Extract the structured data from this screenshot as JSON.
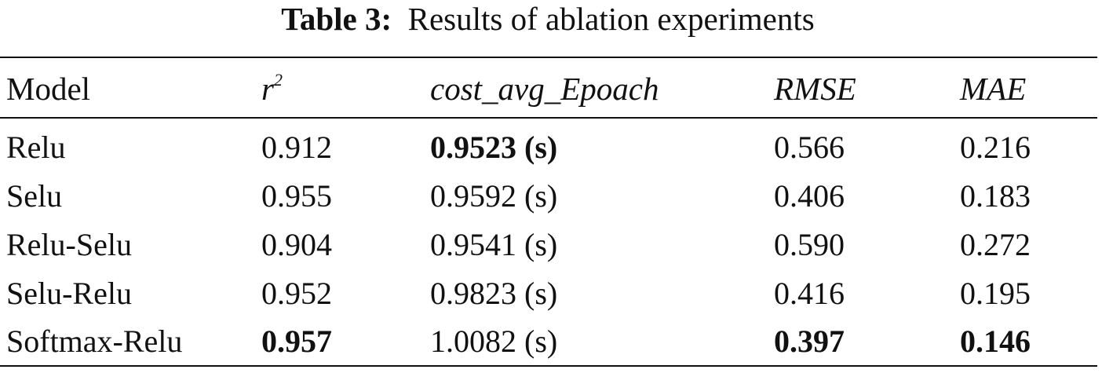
{
  "caption": {
    "label": "Table 3:",
    "text": "Results of ablation experiments"
  },
  "header": {
    "model": "Model",
    "r_base": "r",
    "r_sup": "2",
    "cost": "cost_avg_Epoach",
    "rmse": "RMSE",
    "mae": "MAE"
  },
  "rows": [
    {
      "model": "Relu",
      "r2": "0.912",
      "cost": "0.9523 (s)",
      "rmse": "0.566",
      "mae": "0.216"
    },
    {
      "model": "Selu",
      "r2": "0.955",
      "cost": "0.9592 (s)",
      "rmse": "0.406",
      "mae": "0.183"
    },
    {
      "model": "Relu-Selu",
      "r2": "0.904",
      "cost": "0.9541 (s)",
      "rmse": "0.590",
      "mae": "0.272"
    },
    {
      "model": "Selu-Relu",
      "r2": "0.952",
      "cost": "0.9823 (s)",
      "rmse": "0.416",
      "mae": "0.195"
    },
    {
      "model": "Softmax-Relu",
      "r2": "0.957",
      "cost": "1.0082 (s)",
      "rmse": "0.397",
      "mae": "0.146"
    }
  ],
  "bold_cells": {
    "cost_row": 0,
    "r2_row": 4,
    "rmse_row": 4,
    "mae_row": 4
  }
}
